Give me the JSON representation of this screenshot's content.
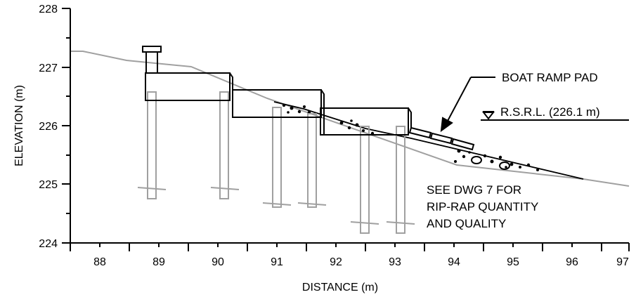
{
  "axes": {
    "x_label": "DISTANCE (m)",
    "y_label": "ELEVATION (m)",
    "x_ticks": [
      "88",
      "89",
      "90",
      "91",
      "92",
      "93",
      "94",
      "95",
      "96",
      "97"
    ],
    "y_ticks": [
      "224",
      "225",
      "226",
      "227",
      "228"
    ],
    "x_range": [
      87.5,
      97
    ],
    "y_range": [
      224,
      228
    ]
  },
  "annotations": {
    "boat_ramp": "BOAT RAMP PAD",
    "rsrl": "R.S.R.L. (226.1 m)",
    "note_lines": [
      "SEE DWG 7 FOR",
      "RIP-RAP QUANTITY",
      "AND QUALITY"
    ]
  },
  "colors": {
    "structure": "#000000",
    "ground": "#a0a0a0",
    "piles": "#a0a0a0",
    "riprap": "#000000"
  }
}
